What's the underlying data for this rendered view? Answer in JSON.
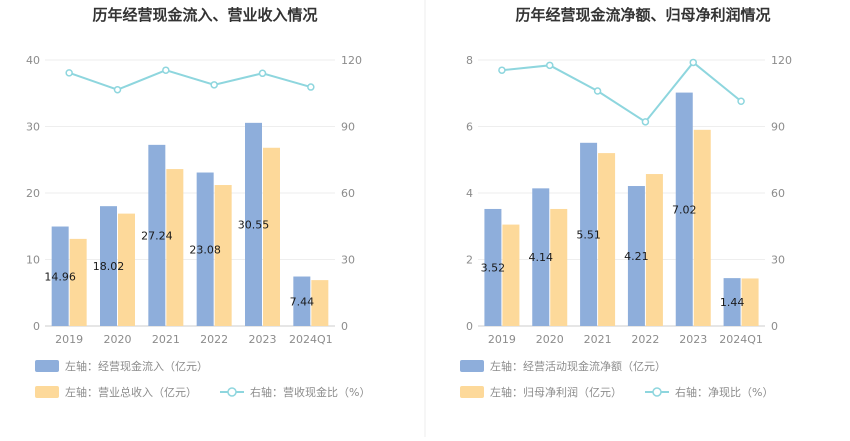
{
  "chart_data": [
    {
      "type": "bar",
      "title": "历年经营现金流入、营业收入情况",
      "categories": [
        "2019",
        "2020",
        "2021",
        "2022",
        "2023",
        "2024Q1"
      ],
      "y_left_ticks": [
        "0",
        "10",
        "20",
        "30",
        "40"
      ],
      "y_right_ticks": [
        "0",
        "30",
        "60",
        "90",
        "120"
      ],
      "ylim_left": [
        0,
        40
      ],
      "ylim_right": [
        0,
        120
      ],
      "series": [
        {
          "name": "左轴：经营现金流入（亿元）",
          "kind": "bar",
          "axis": "left",
          "color": "#8eaedb",
          "values": [
            14.96,
            18.02,
            27.24,
            23.08,
            30.55,
            7.44
          ],
          "labels": [
            "14.96",
            "18.02",
            "27.24",
            "23.08",
            "30.55",
            "7.44"
          ]
        },
        {
          "name": "左轴：营业总收入（亿元）",
          "kind": "bar",
          "axis": "left",
          "color": "#fdd99a",
          "values": [
            13.1,
            16.9,
            23.6,
            21.2,
            26.8,
            6.9
          ]
        },
        {
          "name": "右轴：营收现金比（%）",
          "kind": "line",
          "axis": "right",
          "color": "#8ed6de",
          "values": [
            114.2,
            106.6,
            115.4,
            108.8,
            114.0,
            107.8
          ]
        }
      ],
      "grid": true
    },
    {
      "type": "bar",
      "title": "历年经营现金流净额、归母净利润情况",
      "categories": [
        "2019",
        "2020",
        "2021",
        "2022",
        "2023",
        "2024Q1"
      ],
      "y_left_ticks": [
        "0",
        "2",
        "4",
        "6",
        "8"
      ],
      "y_right_ticks": [
        "0",
        "30",
        "60",
        "90",
        "120"
      ],
      "ylim_left": [
        0,
        8
      ],
      "ylim_right": [
        0,
        120
      ],
      "series": [
        {
          "name": "左轴：经营活动现金流净额（亿元）",
          "kind": "bar",
          "axis": "left",
          "color": "#8eaedb",
          "values": [
            3.52,
            4.14,
            5.51,
            4.21,
            7.02,
            1.44
          ],
          "labels": [
            "3.52",
            "4.14",
            "5.51",
            "4.21",
            "7.02",
            "1.44"
          ]
        },
        {
          "name": "左轴：归母净利润（亿元）",
          "kind": "bar",
          "axis": "left",
          "color": "#fdd99a",
          "values": [
            3.05,
            3.52,
            5.2,
            4.57,
            5.9,
            1.43
          ]
        },
        {
          "name": "右轴：净现比（%）",
          "kind": "line",
          "axis": "right",
          "color": "#8ed6de",
          "values": [
            115.4,
            117.6,
            106.0,
            92.1,
            118.9,
            101.4
          ]
        }
      ],
      "grid": true
    }
  ]
}
